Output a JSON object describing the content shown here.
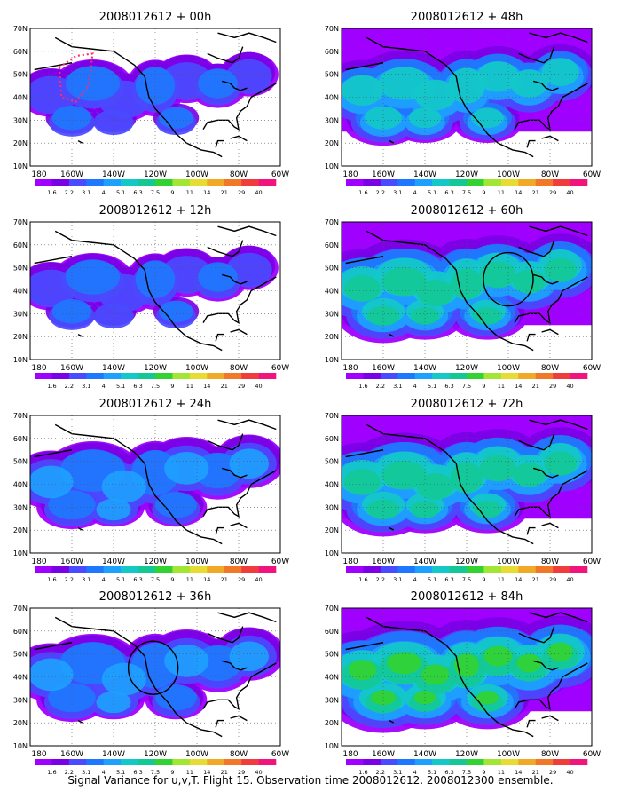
{
  "figure": {
    "caption": "Signal Variance for u,v,T. Flight 15. Observation time 2008012612. 2008012300 ensemble."
  },
  "colorbar": {
    "labels": [
      "1.6",
      "2.2",
      "3.1",
      "4",
      "5.1",
      "6.3",
      "7.5",
      "9",
      "11",
      "14",
      "21",
      "29",
      "40"
    ],
    "colors": [
      "#a000ff",
      "#7a00e6",
      "#4a4aff",
      "#1e78ff",
      "#1ea0ff",
      "#14c8c8",
      "#14c896",
      "#32d232",
      "#a0e632",
      "#e6dc32",
      "#f0aa28",
      "#f07828",
      "#f03c3c",
      "#f0147c"
    ]
  },
  "axes": {
    "x_ticks": [
      "180",
      "160W",
      "140W",
      "120W",
      "100W",
      "80W",
      "60W"
    ],
    "y_ticks": [
      "10N",
      "20N",
      "30N",
      "40N",
      "50N",
      "60N",
      "70N"
    ]
  },
  "panels": [
    {
      "title": "2008012612 + 00h",
      "level": 1,
      "circle": false,
      "dotted_box": true
    },
    {
      "title": "2008012612 + 48h",
      "level": 3,
      "circle": false,
      "dotted_box": false
    },
    {
      "title": "2008012612 + 12h",
      "level": 1,
      "circle": false,
      "dotted_box": false
    },
    {
      "title": "2008012612 + 60h",
      "level": 4,
      "circle": true,
      "dotted_box": false
    },
    {
      "title": "2008012612 + 24h",
      "level": 2,
      "circle": false,
      "dotted_box": false
    },
    {
      "title": "2008012612 + 72h",
      "level": 4,
      "circle": false,
      "dotted_box": false
    },
    {
      "title": "2008012612 + 36h",
      "level": 2,
      "circle": true,
      "dotted_box": false
    },
    {
      "title": "2008012612 + 84h",
      "level": 5,
      "circle": false,
      "dotted_box": false
    }
  ]
}
